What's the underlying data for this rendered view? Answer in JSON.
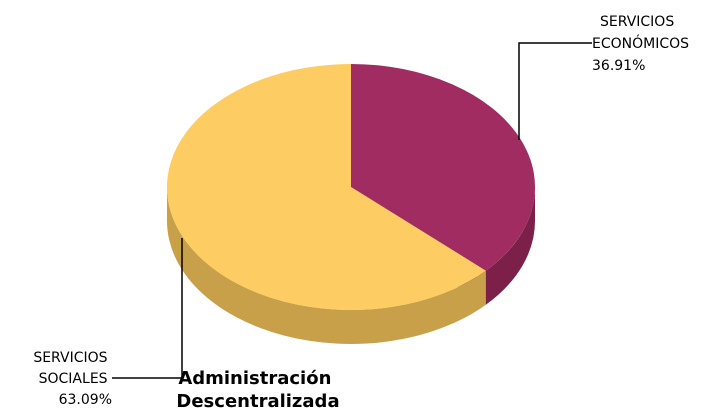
{
  "chart_data": {
    "type": "pie",
    "title": "Administración Descentralizada",
    "title_lines": [
      "Administración",
      "Descentralizada"
    ],
    "slices": [
      {
        "name": "SERVICIOS ECONÓMICOS",
        "label_lines": [
          "SERVICIOS",
          "ECONÓMICOS"
        ],
        "value": 36.91,
        "value_label": "36.91%",
        "color": "#A12C61",
        "side_color": "#7D2049"
      },
      {
        "name": "SERVICIOS SOCIALES",
        "label_lines": [
          "SERVICIOS",
          "SOCIALES"
        ],
        "value": 63.09,
        "value_label": "63.09%",
        "color": "#FDCC62",
        "side_color": "#C9A04A"
      }
    ],
    "three_d": true,
    "legend": "none"
  }
}
